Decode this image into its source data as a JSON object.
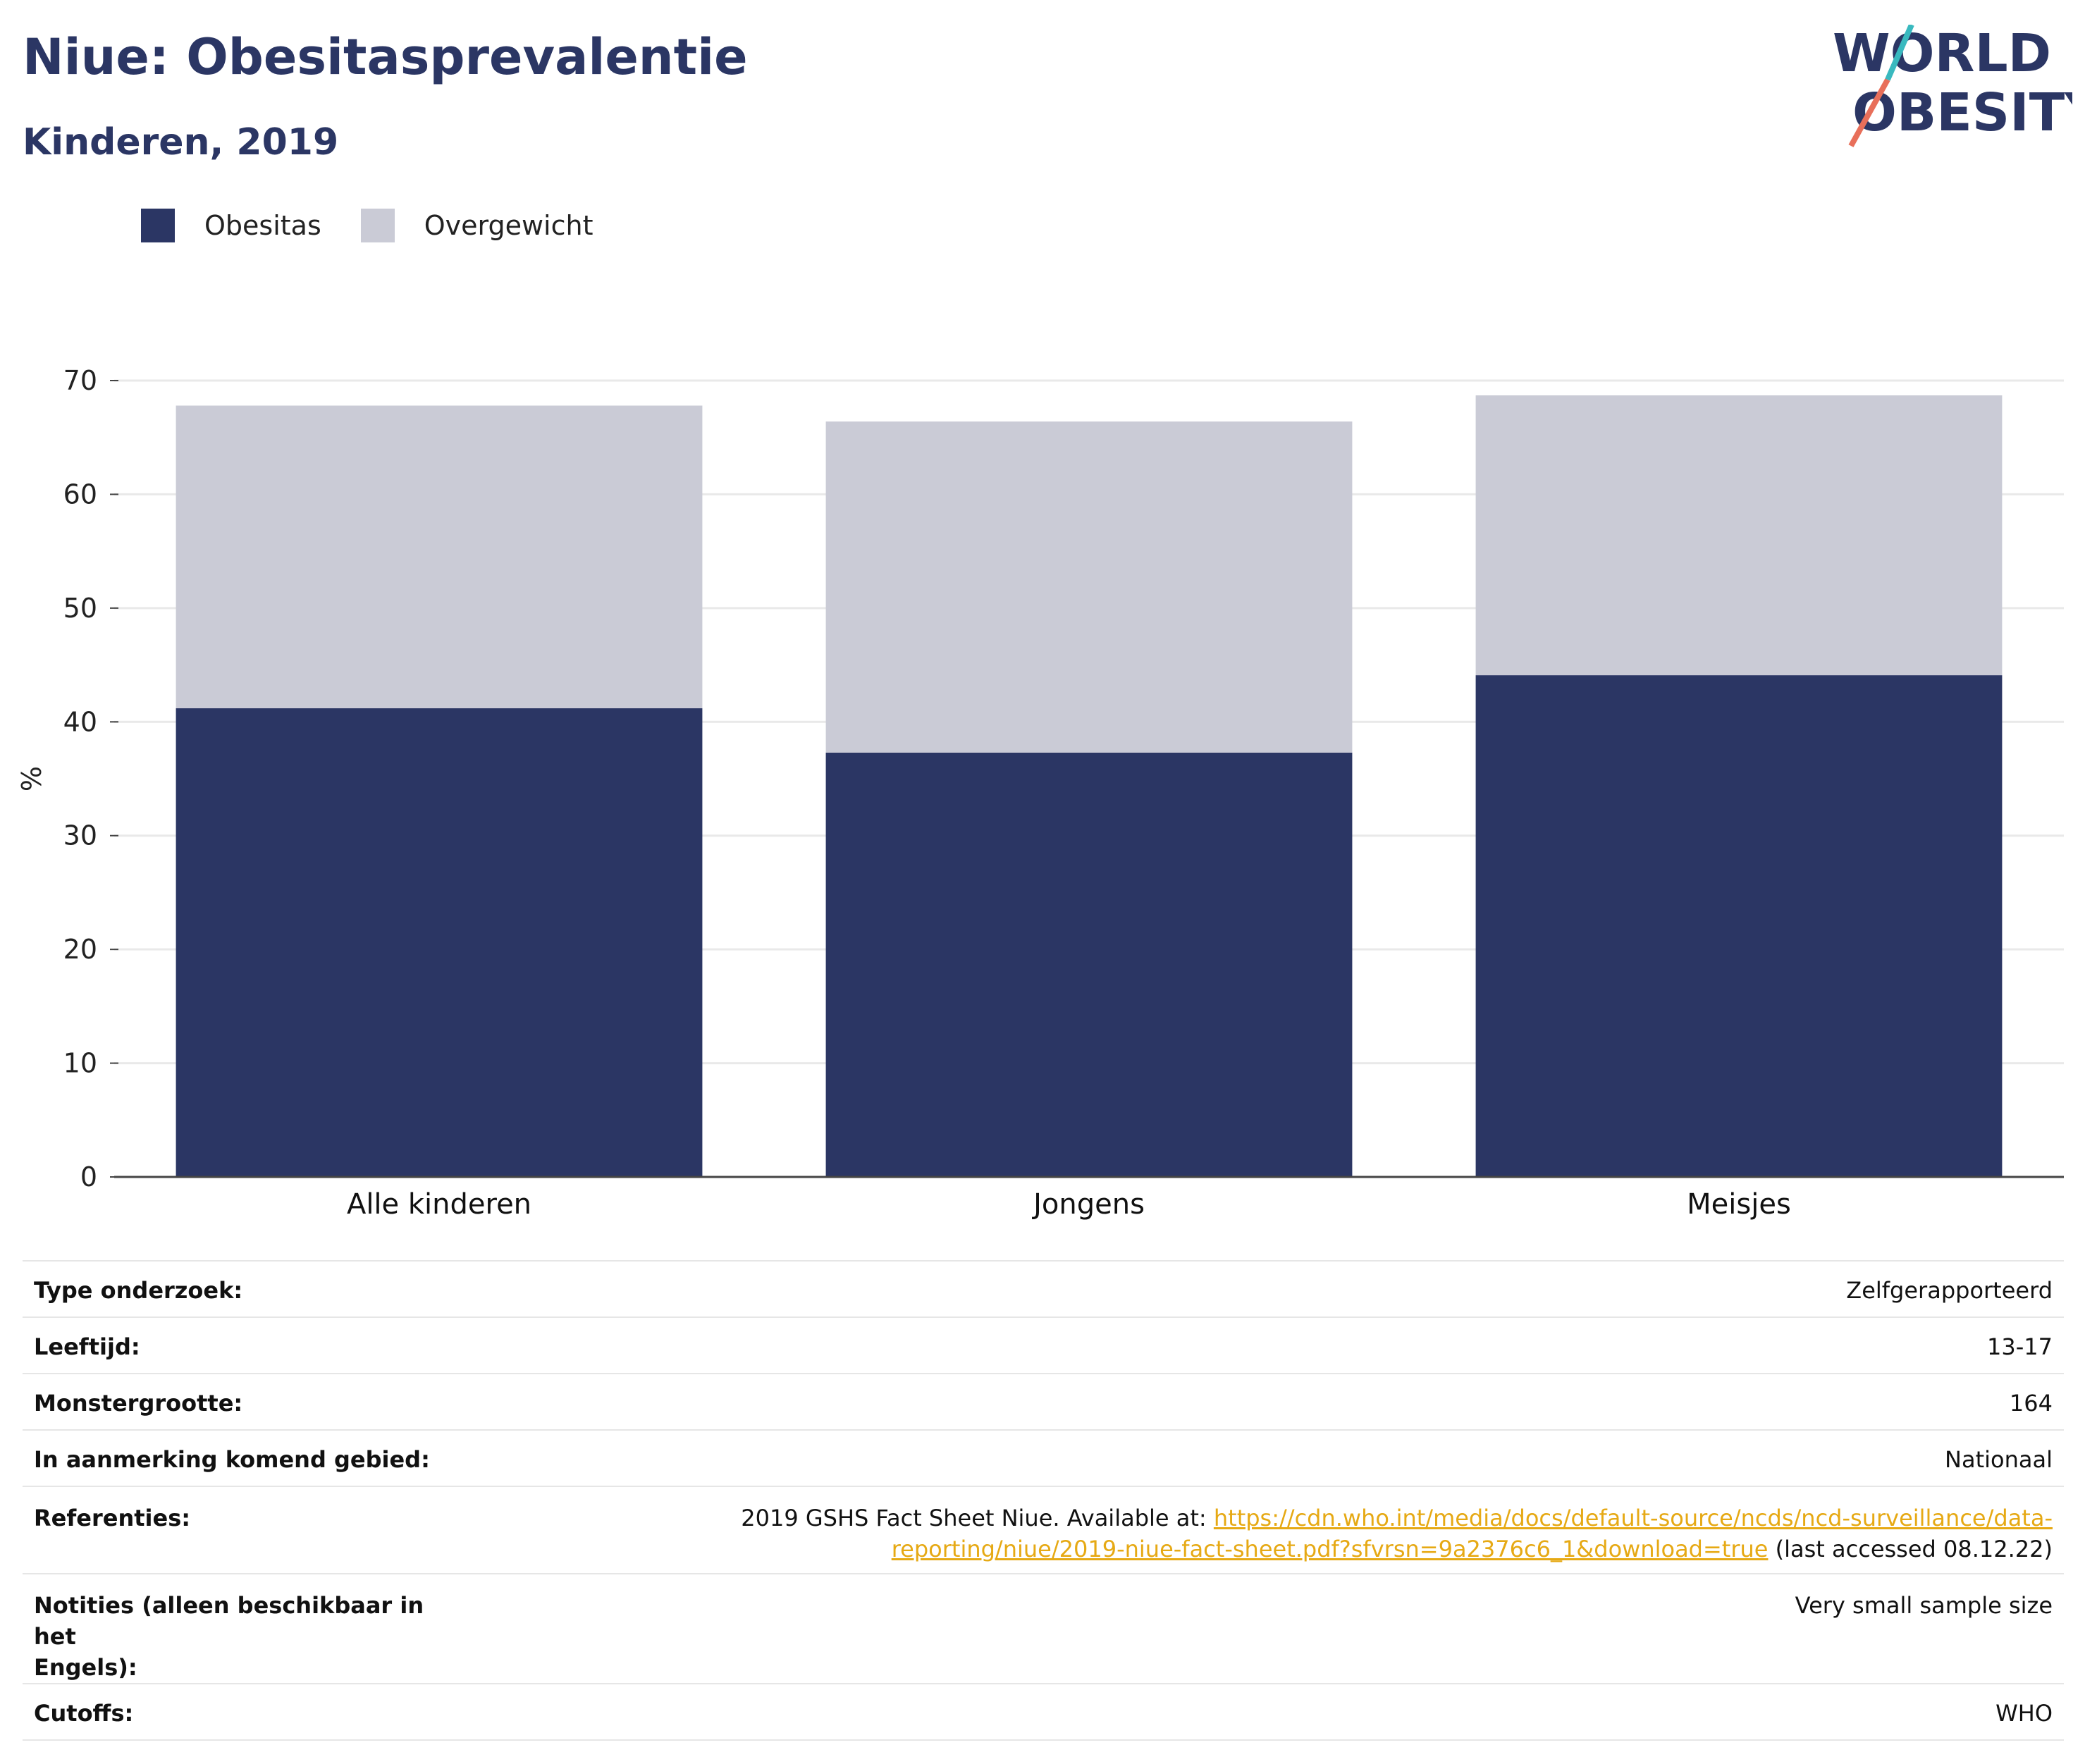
{
  "header": {
    "title": "Niue: Obesitasprevalentie",
    "subtitle": "Kinderen, 2019"
  },
  "logo": {
    "line1": "WORLD",
    "line2": "OBESITY"
  },
  "legend": [
    {
      "label": "Obesitas",
      "color": "#2b3664"
    },
    {
      "label": "Overgewicht",
      "color": "#cacbd6"
    }
  ],
  "chart_data": {
    "type": "bar",
    "stacked": true,
    "categories": [
      "Alle kinderen",
      "Jongens",
      "Meisjes"
    ],
    "series": [
      {
        "name": "Obesitas",
        "color": "#2b3664",
        "values": [
          41.2,
          37.3,
          44.1
        ]
      },
      {
        "name": "Overgewicht",
        "color": "#cacbd6",
        "values": [
          26.6,
          29.1,
          24.6
        ]
      }
    ],
    "ylabel": "%",
    "ylim": [
      0,
      70
    ],
    "yticks": [
      0,
      10,
      20,
      30,
      40,
      50,
      60,
      70
    ],
    "grid": true,
    "legend_position": "top-left"
  },
  "info": {
    "type_label": "Type onderzoek:",
    "type_value": "Zelfgerapporteerd",
    "age_label": "Leeftijd:",
    "age_value": "13-17",
    "sample_label": "Monstergrootte:",
    "sample_value": "164",
    "area_label": "In aanmerking komend gebied:",
    "area_value": "Nationaal",
    "ref_label": "Referenties:",
    "ref_prefix": "2019 GSHS Fact Sheet Niue. Available at: ",
    "ref_link_1": "https://cdn.who.int/media/docs/default-source/ncds/ncd-surveillance/data-",
    "ref_link_2": "reporting/niue/2019-niue-fact-sheet.pdf?sfvrsn=9a2376c6_1&download=true",
    "ref_suffix": " (last accessed 08.12.22)",
    "notes_label_1": "Notities (alleen beschikbaar in het",
    "notes_label_2": "Engels):",
    "notes_value": "Very small sample size",
    "cutoffs_label": "Cutoffs:",
    "cutoffs_value": "WHO"
  }
}
